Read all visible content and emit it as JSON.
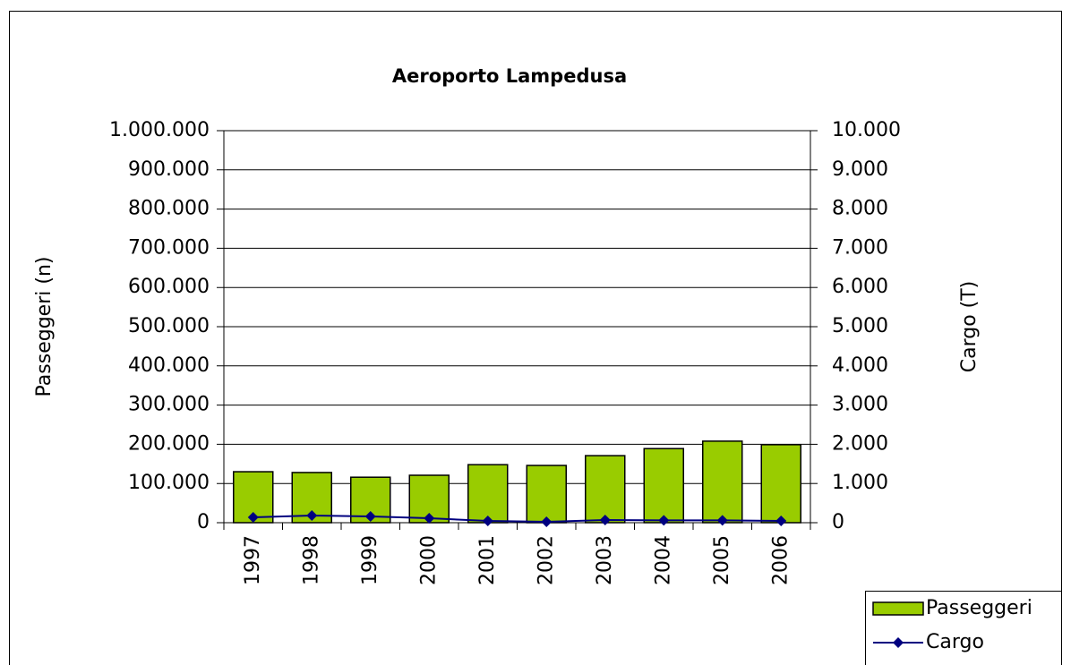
{
  "chart_data": {
    "type": "bar_line",
    "title": "Aeroporto Lampedusa",
    "y_label": "Passeggeri (n)",
    "y2_label": "Cargo (T)",
    "categories": [
      "1997",
      "1998",
      "1999",
      "2000",
      "2001",
      "2002",
      "2003",
      "2004",
      "2005",
      "2006"
    ],
    "series": [
      {
        "name": "Passeggeri",
        "type": "bar",
        "color": "#99cc00",
        "values": [
          130000,
          128000,
          116000,
          121000,
          148000,
          146000,
          171000,
          189000,
          208000,
          199000
        ]
      },
      {
        "name": "Cargo",
        "type": "line",
        "axis": "y2",
        "color": "#000080",
        "values": [
          137,
          183,
          160,
          114,
          46,
          23,
          68,
          60,
          60,
          46
        ]
      }
    ],
    "ylim": [
      0,
      1000000
    ],
    "yticks": [
      0,
      {
        "value": 100000,
        "label": "100.000"
      },
      {
        "value": 200000,
        "label": "200.000"
      },
      {
        "value": 300000,
        "label": "300.000"
      },
      {
        "value": 400000,
        "label": "400.000"
      },
      {
        "value": 500000,
        "label": "500.000"
      },
      {
        "value": 600000,
        "label": "600.000"
      },
      {
        "value": 700000,
        "label": "700.000"
      },
      {
        "value": 800000,
        "label": "800.000"
      },
      {
        "value": 900000,
        "label": "900.000"
      },
      {
        "value": 1000000,
        "label": "1.000.000"
      }
    ],
    "y2lim": [
      0,
      10000
    ],
    "y2ticks": [
      0,
      {
        "value": 1000,
        "label": "1.000"
      },
      {
        "value": 2000,
        "label": "2.000"
      },
      {
        "value": 3000,
        "label": "3.000"
      },
      {
        "value": 4000,
        "label": "4.000"
      },
      {
        "value": 5000,
        "label": "5.000"
      },
      {
        "value": 6000,
        "label": "6.000"
      },
      {
        "value": 7000,
        "label": "7.000"
      },
      {
        "value": 8000,
        "label": "8.000"
      },
      {
        "value": 9000,
        "label": "9.000"
      },
      {
        "value": 10000,
        "label": "10.000"
      }
    ],
    "grid": true
  }
}
